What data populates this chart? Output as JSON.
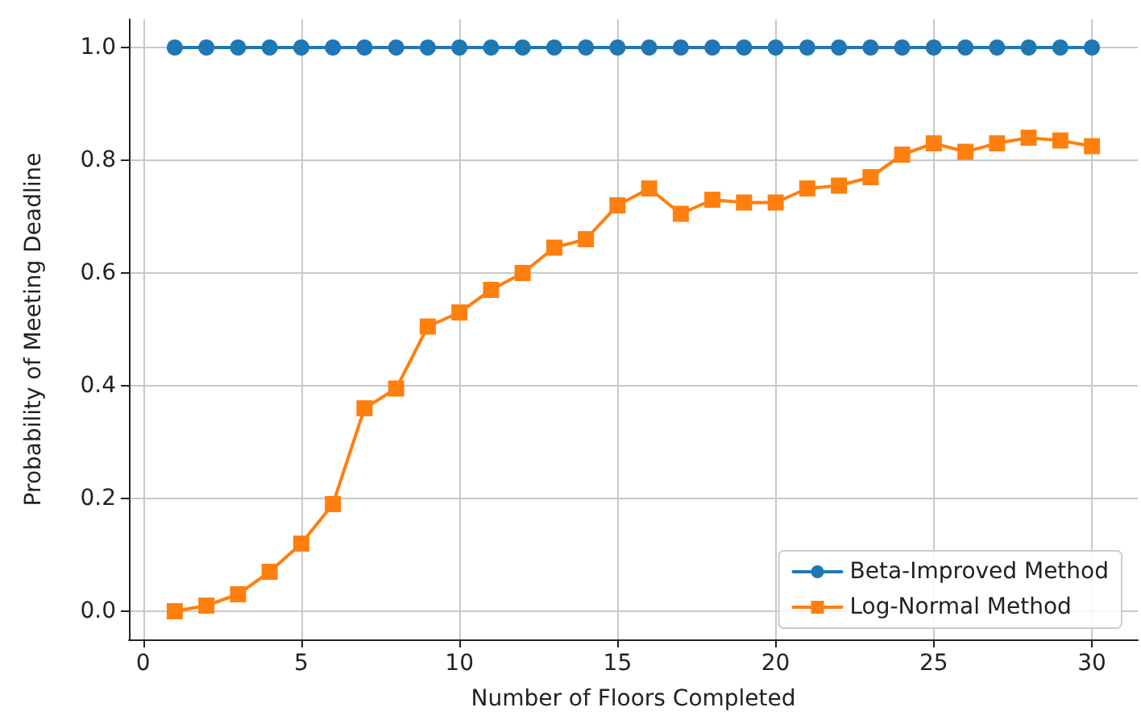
{
  "chart_data": {
    "type": "line",
    "xlabel": "Number of Floors Completed",
    "ylabel": "Probability of Meeting Deadline",
    "x": [
      1,
      2,
      3,
      4,
      5,
      6,
      7,
      8,
      9,
      10,
      11,
      12,
      13,
      14,
      15,
      16,
      17,
      18,
      19,
      20,
      21,
      22,
      23,
      24,
      25,
      26,
      27,
      28,
      29,
      30
    ],
    "series": [
      {
        "name": "Beta-Improved Method",
        "color": "#1f77b4",
        "marker": "circle",
        "values": [
          1,
          1,
          1,
          1,
          1,
          1,
          1,
          1,
          1,
          1,
          1,
          1,
          1,
          1,
          1,
          1,
          1,
          1,
          1,
          1,
          1,
          1,
          1,
          1,
          1,
          1,
          1,
          1,
          1,
          1
        ]
      },
      {
        "name": "Log-Normal Method",
        "color": "#ff7f0e",
        "marker": "square",
        "values": [
          0.0,
          0.01,
          0.03,
          0.07,
          0.12,
          0.19,
          0.36,
          0.395,
          0.505,
          0.53,
          0.57,
          0.6,
          0.645,
          0.66,
          0.72,
          0.75,
          0.705,
          0.73,
          0.725,
          0.725,
          0.75,
          0.755,
          0.77,
          0.81,
          0.83,
          0.815,
          0.83,
          0.84,
          0.835,
          0.825
        ]
      }
    ],
    "xlim": [
      -0.45,
      31.45
    ],
    "xticks": [
      0,
      5,
      10,
      15,
      20,
      25,
      30
    ],
    "ylim": [
      -0.05,
      1.05
    ],
    "yticks": [
      {
        "value": 0,
        "label": "0.0"
      },
      {
        "value": 0.2,
        "label": "0.2"
      },
      {
        "value": 0.4,
        "label": "0.4"
      },
      {
        "value": 0.6,
        "label": "0.6"
      },
      {
        "value": 0.8,
        "label": "0.8"
      },
      {
        "value": 1,
        "label": "1.0"
      }
    ],
    "grid": true,
    "legend": "bottom right"
  }
}
